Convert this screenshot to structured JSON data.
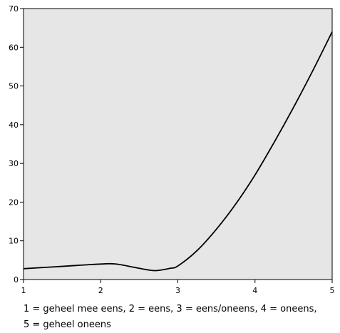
{
  "chart_data": {
    "type": "line",
    "title": "",
    "xlabel": "",
    "ylabel": "",
    "xlim": [
      1,
      5
    ],
    "ylim": [
      0,
      70
    ],
    "x_ticks": [
      1,
      2,
      3,
      4,
      5
    ],
    "y_ticks": [
      0,
      10,
      20,
      30,
      40,
      50,
      60,
      70
    ],
    "grid": false,
    "legend": "none",
    "plot_background": "#e6e6e6",
    "line_color": "#000000",
    "series": [
      {
        "x": [
          1,
          1.5,
          2,
          2.2,
          2.5,
          2.7,
          2.9,
          3,
          3.25,
          3.5,
          3.75,
          4,
          4.25,
          4.5,
          4.75,
          5
        ],
        "values": [
          2.8,
          3.4,
          4.0,
          4.0,
          2.9,
          2.3,
          2.9,
          3.5,
          7.5,
          13.0,
          19.5,
          27.0,
          35.5,
          44.5,
          54.0,
          64.0
        ]
      }
    ],
    "caption_lines": [
      "1 = geheel mee eens,  2 = eens,  3 = eens/oneens,  4 = oneens,",
      "5 = geheel oneens"
    ]
  }
}
